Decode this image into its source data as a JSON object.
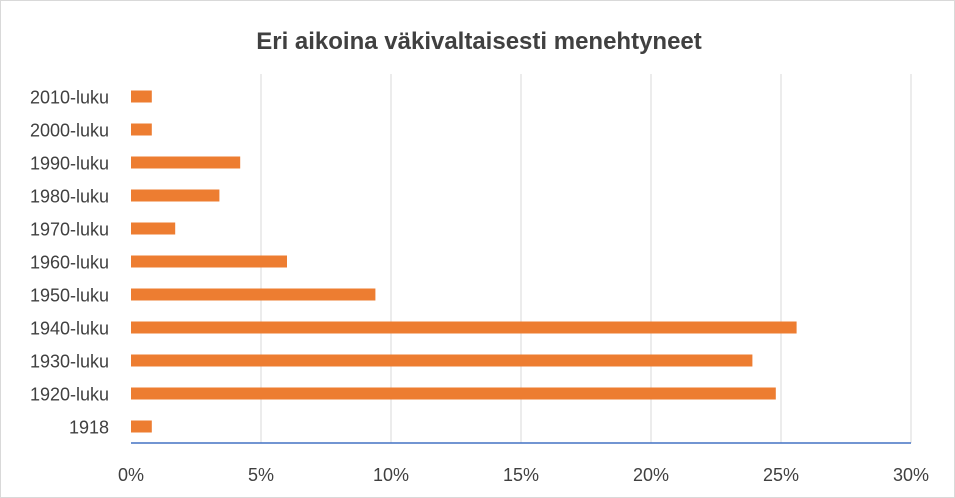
{
  "chart_data": {
    "type": "bar",
    "orientation": "horizontal",
    "title": "Eri aikoina väkivaltaisesti menehtyneet",
    "xlabel": "",
    "ylabel": "",
    "categories": [
      "2010-luku",
      "2000-luku",
      "1990-luku",
      "1980-luku",
      "1970-luku",
      "1960-luku",
      "1950-luku",
      "1940-luku",
      "1930-luku",
      "1920-luku",
      "1918"
    ],
    "series": [
      {
        "values": [
          0.8,
          0.8,
          4.2,
          3.4,
          1.7,
          6.0,
          9.4,
          25.6,
          23.9,
          24.8,
          0.8
        ]
      }
    ],
    "xlim": [
      0,
      30
    ],
    "x_ticks": [
      "0%",
      "5%",
      "10%",
      "15%",
      "20%",
      "25%",
      "30%"
    ],
    "grid": true,
    "legend": "none",
    "colors": {
      "bar": "#ed7d31",
      "grid": "#d9d9d9",
      "axis": "#4472c4",
      "text": "#404040"
    }
  }
}
